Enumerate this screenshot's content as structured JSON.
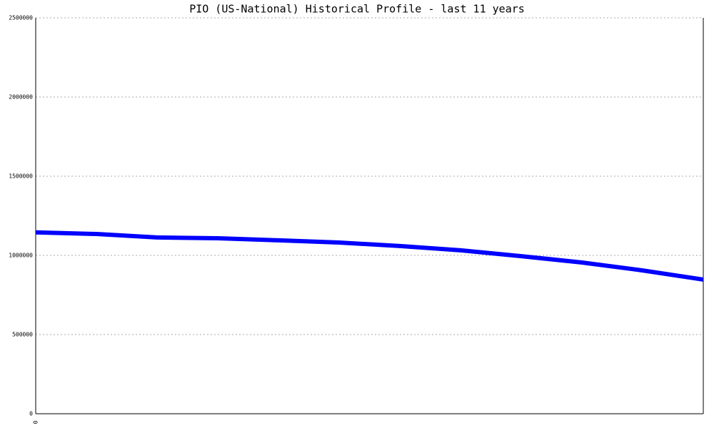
{
  "chart_data": {
    "type": "line",
    "title": "PIO (US-National) Historical Profile - last 11 years",
    "categories": [
      "0",
      null,
      null,
      null,
      null,
      null,
      null,
      null,
      null,
      null,
      null,
      null
    ],
    "series": [
      {
        "name": "PIO",
        "color": "#0000ff",
        "values": [
          1145000,
          1135000,
          1113000,
          1108000,
          1095000,
          1081000,
          1059000,
          1032000,
          995000,
          955000,
          905000,
          847000
        ]
      }
    ],
    "ylim": [
      0,
      2500000
    ],
    "yticks": [
      0,
      500000,
      1000000,
      1500000,
      2000000,
      2500000
    ],
    "grid": true
  }
}
